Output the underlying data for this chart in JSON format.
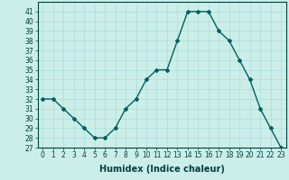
{
  "xlabel": "Humidex (Indice chaleur)",
  "ylabel": "",
  "x_values": [
    0,
    1,
    2,
    3,
    4,
    5,
    6,
    7,
    8,
    9,
    10,
    11,
    12,
    13,
    14,
    15,
    16,
    17,
    18,
    19,
    20,
    21,
    22,
    23
  ],
  "y_values": [
    32,
    32,
    31,
    30,
    29,
    28,
    28,
    29,
    31,
    32,
    34,
    35,
    35,
    38,
    41,
    41,
    41,
    39,
    38,
    36,
    34,
    31,
    29,
    27
  ],
  "ylim": [
    27,
    42
  ],
  "yticks": [
    27,
    28,
    29,
    30,
    31,
    32,
    33,
    34,
    35,
    36,
    37,
    38,
    39,
    40,
    41
  ],
  "line_color": "#006060",
  "marker": "D",
  "marker_size": 2,
  "bg_color": "#cceee8",
  "grid_color": "#aadddd",
  "tick_label_fontsize": 5.5,
  "xlabel_fontsize": 7,
  "line_width": 1.0
}
